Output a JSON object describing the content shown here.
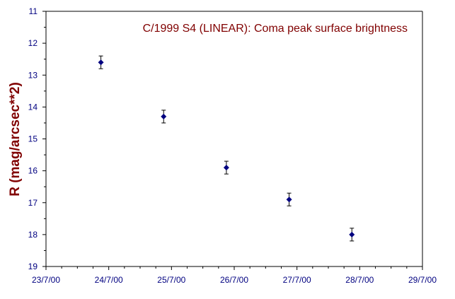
{
  "chart_data": {
    "type": "scatter",
    "title": "C/1999 S4 (LINEAR): Coma peak surface brightness",
    "xlabel": "",
    "ylabel": "R (mag/arcsec**2)",
    "x_tick_labels": [
      "23/7/00",
      "24/7/00",
      "25/7/00",
      "26/7/00",
      "27/7/00",
      "28/7/00",
      "29/7/00"
    ],
    "y_tick_labels": [
      "11",
      "12",
      "13",
      "14",
      "15",
      "16",
      "17",
      "18",
      "19"
    ],
    "xlim": [
      "23/7/00",
      "29/7/00"
    ],
    "ylim": [
      11,
      19
    ],
    "y_inverted": true,
    "grid": false,
    "points": [
      {
        "x": "23/7/00 21:00",
        "y": 12.6,
        "err": 0.2
      },
      {
        "x": "24/7/00 21:00",
        "y": 14.3,
        "err": 0.2
      },
      {
        "x": "25/7/00 21:00",
        "y": 15.9,
        "err": 0.2
      },
      {
        "x": "26/7/00 21:00",
        "y": 16.9,
        "err": 0.2
      },
      {
        "x": "27/7/00 21:00",
        "y": 18.0,
        "err": 0.2
      }
    ],
    "colors": {
      "marker": "#000080",
      "error_bar": "#000000",
      "axis": "#000000",
      "tick_labels": "#000080",
      "title": "#800000",
      "ylabel": "#800000"
    }
  }
}
